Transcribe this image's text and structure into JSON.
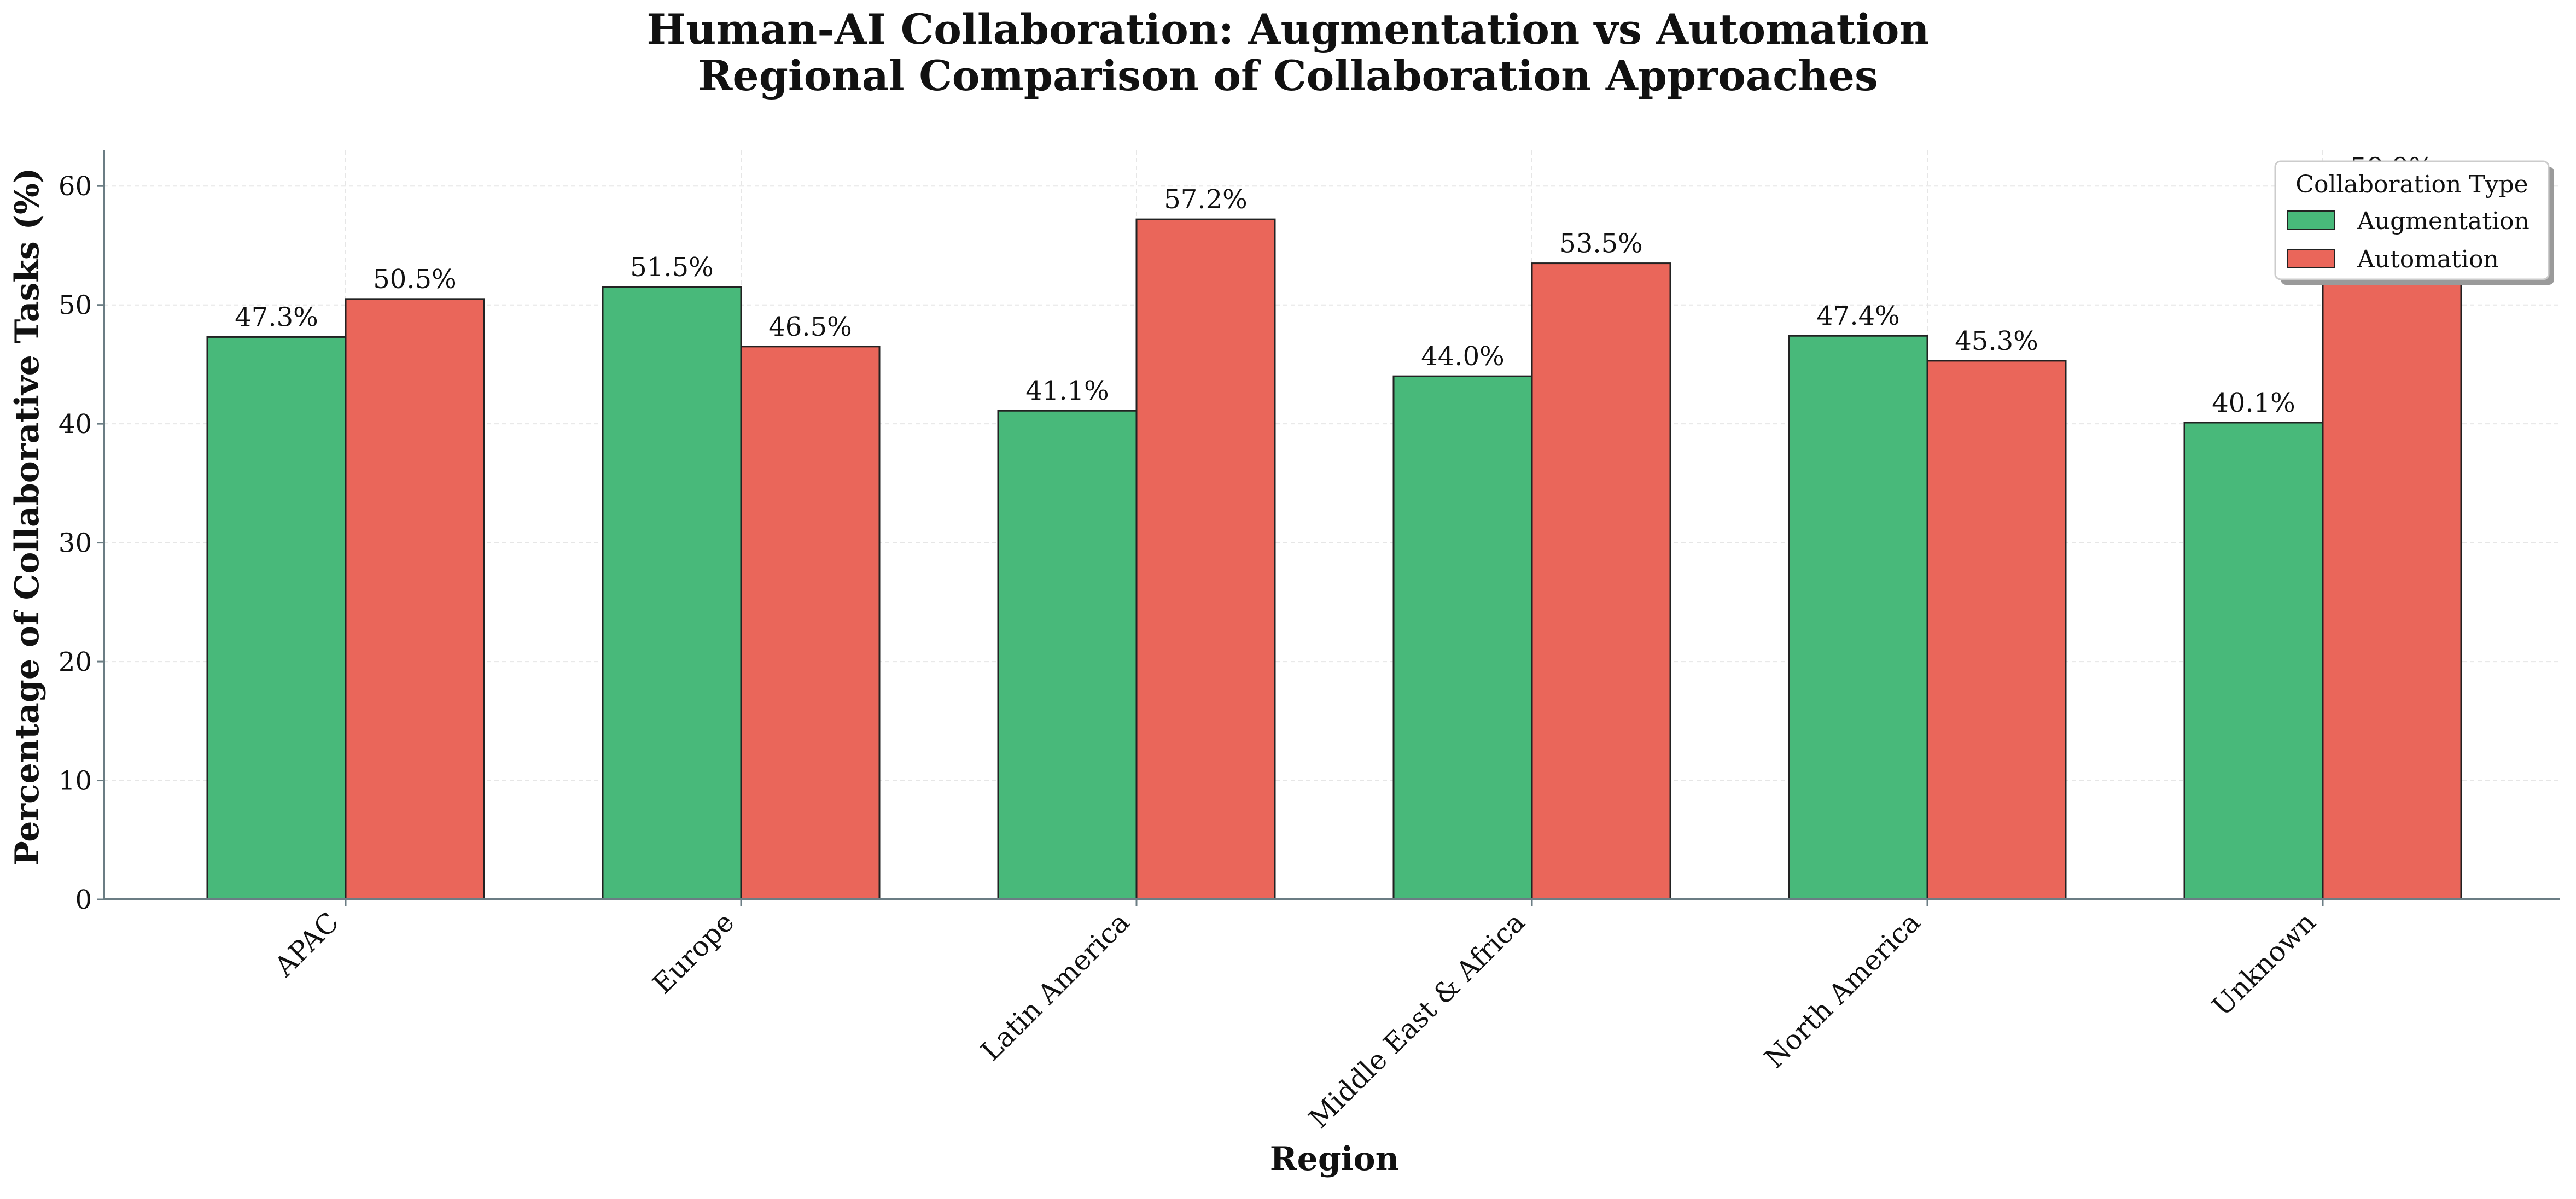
{
  "chart_data": {
    "type": "bar",
    "title": "Human-AI Collaboration: Augmentation vs Automation",
    "subtitle": "Regional Comparison of Collaboration Approaches",
    "xlabel": "Region",
    "ylabel": "Percentage of Collaborative Tasks (%)",
    "categories": [
      "APAC",
      "Europe",
      "Latin America",
      "Middle East & Africa",
      "North America",
      "Unknown"
    ],
    "series": [
      {
        "name": "Augmentation",
        "values": [
          47.3,
          51.5,
          41.1,
          44.0,
          47.4,
          40.1
        ],
        "color": "#48b97a"
      },
      {
        "name": "Automation",
        "values": [
          50.5,
          46.5,
          57.2,
          53.5,
          45.3,
          59.9
        ],
        "color": "#ea665a"
      }
    ],
    "data_labels": [
      [
        "47.3%",
        "51.5%",
        "41.1%",
        "44.0%",
        "47.4%",
        "40.1%"
      ],
      [
        "50.5%",
        "46.5%",
        "57.2%",
        "53.5%",
        "45.3%",
        "59.9%"
      ]
    ],
    "yticks": [
      0,
      10,
      20,
      30,
      40,
      50,
      60
    ],
    "ylim": [
      0,
      63
    ],
    "grid": true,
    "legend": {
      "title": "Collaboration Type",
      "position": "top-right"
    }
  }
}
